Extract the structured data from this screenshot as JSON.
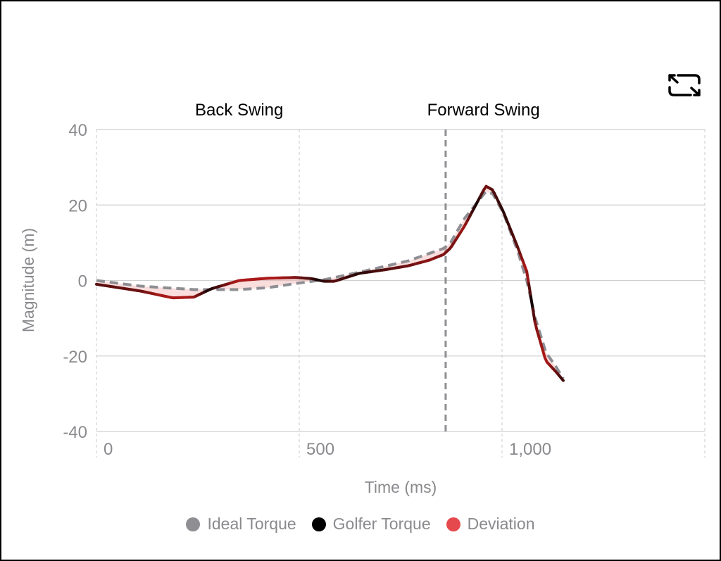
{
  "chart_data": {
    "type": "line",
    "xlabel": "Time (ms)",
    "ylabel": "Magnitude (m)",
    "xlim": [
      0,
      1500
    ],
    "ylim": [
      -40,
      40
    ],
    "x_ticks": [
      0,
      500,
      1000,
      1500
    ],
    "x_tick_labels": [
      "0",
      "500",
      "1,000",
      ""
    ],
    "y_ticks": [
      40,
      20,
      0,
      -20,
      -40
    ],
    "y_tick_labels": [
      "40",
      "20",
      "0",
      "-20",
      "-40"
    ],
    "grid": true,
    "phase_divider_x": 861,
    "phases": [
      {
        "label": "Back Swing",
        "center_x": 430
      },
      {
        "label": "Forward Swing",
        "center_x": 1180
      }
    ],
    "legend_position": "bottom",
    "series": [
      {
        "name": "Ideal Torque",
        "color": "#8e8e93",
        "style": "dashed",
        "x": [
          0,
          109,
          240,
          352,
          422,
          491,
          561,
          648,
          769,
          856,
          873,
          908,
          960,
          977,
          1003,
          1038,
          1061,
          1082,
          1108,
          1134,
          1151
        ],
        "y": [
          0,
          -1.5,
          -2.4,
          -2.4,
          -1.9,
          -0.8,
          0.2,
          2.2,
          5.2,
          8.5,
          10,
          16.5,
          23.5,
          23,
          18,
          8,
          0,
          -10,
          -19,
          -23,
          -26
        ]
      },
      {
        "name": "Golfer Torque",
        "color": "#000000",
        "style": "solid",
        "x": [
          0,
          109,
          188,
          240,
          283,
          352,
          422,
          491,
          530,
          561,
          587,
          648,
          708,
          769,
          821,
          856,
          873,
          908,
          960,
          977,
          1003,
          1038,
          1061,
          1082,
          1108,
          1134,
          1151
        ],
        "y": [
          -1,
          -2.8,
          -4.6,
          -4.4,
          -2.2,
          0,
          0.6,
          0.8,
          0.5,
          -0.2,
          -0.2,
          1.9,
          2.8,
          3.9,
          5.4,
          6.9,
          8.6,
          14.5,
          25,
          24,
          18.3,
          9,
          2.4,
          -11.6,
          -21.3,
          -24.3,
          -26.5
        ]
      },
      {
        "name": "Deviation",
        "color": "#e5484d",
        "style": "fill-between"
      }
    ]
  },
  "ui": {
    "expand_icon": "expand-arrows-icon"
  }
}
